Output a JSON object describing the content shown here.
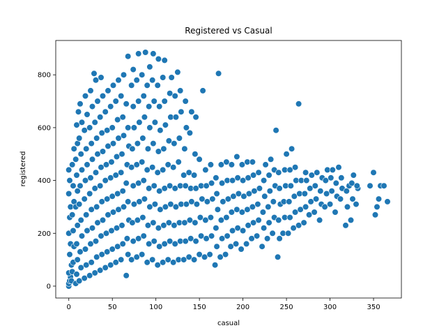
{
  "chart_data": {
    "type": "scatter",
    "title": "Registered vs Casual",
    "xlabel": "casual",
    "ylabel": "registered",
    "xlim": [
      -15,
      382
    ],
    "ylim": [
      -45,
      930
    ],
    "xticks": [
      0,
      50,
      100,
      150,
      200,
      250,
      300,
      350
    ],
    "yticks": [
      0,
      200,
      400,
      600,
      800
    ],
    "grid": false,
    "legend": "none",
    "marker_color": "#1f77b4",
    "marker_edge": "#ffffff",
    "points": [
      [
        0,
        0
      ],
      [
        0,
        10
      ],
      [
        1,
        20
      ],
      [
        2,
        35
      ],
      [
        0,
        50
      ],
      [
        3,
        80
      ],
      [
        1,
        120
      ],
      [
        2,
        160
      ],
      [
        0,
        200
      ],
      [
        1,
        260
      ],
      [
        2,
        300
      ],
      [
        0,
        350
      ],
      [
        1,
        400
      ],
      [
        0,
        440
      ],
      [
        3,
        20
      ],
      [
        4,
        55
      ],
      [
        5,
        90
      ],
      [
        6,
        150
      ],
      [
        5,
        210
      ],
      [
        4,
        270
      ],
      [
        6,
        320
      ],
      [
        5,
        380
      ],
      [
        4,
        460
      ],
      [
        6,
        520
      ],
      [
        8,
        10
      ],
      [
        9,
        45
      ],
      [
        10,
        100
      ],
      [
        9,
        160
      ],
      [
        10,
        230
      ],
      [
        8,
        300
      ],
      [
        10,
        360
      ],
      [
        9,
        420
      ],
      [
        8,
        480
      ],
      [
        10,
        540
      ],
      [
        9,
        610
      ],
      [
        11,
        660
      ],
      [
        12,
        20
      ],
      [
        14,
        70
      ],
      [
        13,
        130
      ],
      [
        15,
        190
      ],
      [
        14,
        250
      ],
      [
        12,
        310
      ],
      [
        13,
        380
      ],
      [
        15,
        440
      ],
      [
        14,
        500
      ],
      [
        12,
        560
      ],
      [
        15,
        620
      ],
      [
        13,
        690
      ],
      [
        18,
        30
      ],
      [
        20,
        80
      ],
      [
        19,
        140
      ],
      [
        21,
        210
      ],
      [
        20,
        270
      ],
      [
        18,
        330
      ],
      [
        19,
        400
      ],
      [
        21,
        460
      ],
      [
        20,
        520
      ],
      [
        18,
        590
      ],
      [
        21,
        650
      ],
      [
        19,
        720
      ],
      [
        24,
        40
      ],
      [
        26,
        90
      ],
      [
        25,
        160
      ],
      [
        27,
        220
      ],
      [
        26,
        290
      ],
      [
        24,
        350
      ],
      [
        25,
        410
      ],
      [
        27,
        480
      ],
      [
        26,
        540
      ],
      [
        24,
        600
      ],
      [
        27,
        680
      ],
      [
        25,
        740
      ],
      [
        30,
        50
      ],
      [
        32,
        110
      ],
      [
        31,
        170
      ],
      [
        33,
        240
      ],
      [
        32,
        300
      ],
      [
        30,
        370
      ],
      [
        31,
        430
      ],
      [
        33,
        500
      ],
      [
        32,
        560
      ],
      [
        30,
        620
      ],
      [
        33,
        700
      ],
      [
        31,
        780
      ],
      [
        29,
        805
      ],
      [
        36,
        60
      ],
      [
        38,
        120
      ],
      [
        37,
        190
      ],
      [
        39,
        250
      ],
      [
        38,
        320
      ],
      [
        36,
        380
      ],
      [
        37,
        450
      ],
      [
        39,
        510
      ],
      [
        38,
        580
      ],
      [
        36,
        640
      ],
      [
        39,
        720
      ],
      [
        37,
        790
      ],
      [
        42,
        70
      ],
      [
        44,
        130
      ],
      [
        43,
        200
      ],
      [
        45,
        270
      ],
      [
        44,
        330
      ],
      [
        42,
        400
      ],
      [
        43,
        460
      ],
      [
        45,
        530
      ],
      [
        44,
        590
      ],
      [
        42,
        660
      ],
      [
        45,
        740
      ],
      [
        48,
        80
      ],
      [
        50,
        140
      ],
      [
        49,
        210
      ],
      [
        51,
        280
      ],
      [
        50,
        340
      ],
      [
        48,
        410
      ],
      [
        49,
        470
      ],
      [
        51,
        540
      ],
      [
        50,
        600
      ],
      [
        48,
        680
      ],
      [
        51,
        760
      ],
      [
        54,
        90
      ],
      [
        56,
        150
      ],
      [
        55,
        220
      ],
      [
        57,
        290
      ],
      [
        56,
        350
      ],
      [
        54,
        420
      ],
      [
        55,
        490
      ],
      [
        57,
        560
      ],
      [
        56,
        630
      ],
      [
        54,
        700
      ],
      [
        57,
        780
      ],
      [
        60,
        100
      ],
      [
        62,
        160
      ],
      [
        61,
        230
      ],
      [
        63,
        300
      ],
      [
        62,
        360
      ],
      [
        60,
        430
      ],
      [
        61,
        500
      ],
      [
        63,
        570
      ],
      [
        62,
        640
      ],
      [
        60,
        720
      ],
      [
        63,
        800
      ],
      [
        66,
        40
      ],
      [
        68,
        120
      ],
      [
        67,
        180
      ],
      [
        69,
        250
      ],
      [
        68,
        320
      ],
      [
        66,
        390
      ],
      [
        67,
        460
      ],
      [
        69,
        530
      ],
      [
        68,
        600
      ],
      [
        66,
        690
      ],
      [
        68,
        870
      ],
      [
        72,
        100
      ],
      [
        74,
        170
      ],
      [
        73,
        240
      ],
      [
        75,
        310
      ],
      [
        74,
        380
      ],
      [
        72,
        450
      ],
      [
        73,
        520
      ],
      [
        75,
        600
      ],
      [
        74,
        680
      ],
      [
        72,
        760
      ],
      [
        74,
        820
      ],
      [
        78,
        110
      ],
      [
        80,
        180
      ],
      [
        79,
        250
      ],
      [
        81,
        320
      ],
      [
        80,
        390
      ],
      [
        78,
        460
      ],
      [
        79,
        540
      ],
      [
        81,
        620
      ],
      [
        80,
        700
      ],
      [
        78,
        780
      ],
      [
        80,
        880
      ],
      [
        84,
        120
      ],
      [
        86,
        190
      ],
      [
        85,
        260
      ],
      [
        87,
        330
      ],
      [
        86,
        400
      ],
      [
        84,
        470
      ],
      [
        85,
        560
      ],
      [
        87,
        640
      ],
      [
        86,
        720
      ],
      [
        84,
        800
      ],
      [
        88,
        885
      ],
      [
        90,
        90
      ],
      [
        92,
        160
      ],
      [
        91,
        230
      ],
      [
        93,
        300
      ],
      [
        92,
        370
      ],
      [
        90,
        440
      ],
      [
        91,
        520
      ],
      [
        93,
        600
      ],
      [
        92,
        680
      ],
      [
        90,
        760
      ],
      [
        93,
        830
      ],
      [
        96,
        100
      ],
      [
        98,
        170
      ],
      [
        97,
        240
      ],
      [
        99,
        310
      ],
      [
        98,
        380
      ],
      [
        96,
        450
      ],
      [
        97,
        540
      ],
      [
        99,
        620
      ],
      [
        98,
        700
      ],
      [
        96,
        780
      ],
      [
        97,
        880
      ],
      [
        102,
        80
      ],
      [
        104,
        150
      ],
      [
        103,
        220
      ],
      [
        105,
        290
      ],
      [
        104,
        360
      ],
      [
        102,
        430
      ],
      [
        103,
        510
      ],
      [
        105,
        590
      ],
      [
        104,
        680
      ],
      [
        102,
        760
      ],
      [
        103,
        860
      ],
      [
        108,
        90
      ],
      [
        110,
        160
      ],
      [
        109,
        230
      ],
      [
        111,
        300
      ],
      [
        110,
        370
      ],
      [
        108,
        440
      ],
      [
        109,
        520
      ],
      [
        111,
        610
      ],
      [
        110,
        700
      ],
      [
        108,
        790
      ],
      [
        110,
        855
      ],
      [
        114,
        100
      ],
      [
        116,
        170
      ],
      [
        115,
        240
      ],
      [
        117,
        310
      ],
      [
        116,
        380
      ],
      [
        114,
        460
      ],
      [
        115,
        550
      ],
      [
        117,
        640
      ],
      [
        116,
        730
      ],
      [
        118,
        790
      ],
      [
        120,
        90
      ],
      [
        122,
        160
      ],
      [
        121,
        230
      ],
      [
        123,
        300
      ],
      [
        122,
        370
      ],
      [
        120,
        450
      ],
      [
        121,
        540
      ],
      [
        123,
        640
      ],
      [
        122,
        720
      ],
      [
        125,
        810
      ],
      [
        126,
        100
      ],
      [
        128,
        170
      ],
      [
        127,
        240
      ],
      [
        129,
        310
      ],
      [
        128,
        380
      ],
      [
        126,
        470
      ],
      [
        127,
        560
      ],
      [
        129,
        660
      ],
      [
        128,
        740
      ],
      [
        132,
        100
      ],
      [
        134,
        170
      ],
      [
        133,
        240
      ],
      [
        135,
        310
      ],
      [
        134,
        380
      ],
      [
        132,
        420
      ],
      [
        133,
        520
      ],
      [
        135,
        600
      ],
      [
        134,
        700
      ],
      [
        138,
        110
      ],
      [
        140,
        180
      ],
      [
        139,
        250
      ],
      [
        141,
        320
      ],
      [
        140,
        370
      ],
      [
        138,
        430
      ],
      [
        139,
        580
      ],
      [
        141,
        660
      ],
      [
        144,
        100
      ],
      [
        146,
        170
      ],
      [
        145,
        240
      ],
      [
        147,
        310
      ],
      [
        146,
        370
      ],
      [
        144,
        420
      ],
      [
        145,
        500
      ],
      [
        146,
        640
      ],
      [
        150,
        120
      ],
      [
        152,
        190
      ],
      [
        151,
        260
      ],
      [
        153,
        330
      ],
      [
        152,
        380
      ],
      [
        150,
        480
      ],
      [
        154,
        740
      ],
      [
        156,
        110
      ],
      [
        158,
        180
      ],
      [
        157,
        250
      ],
      [
        159,
        320
      ],
      [
        158,
        380
      ],
      [
        157,
        440
      ],
      [
        162,
        120
      ],
      [
        164,
        190
      ],
      [
        163,
        260
      ],
      [
        165,
        330
      ],
      [
        164,
        390
      ],
      [
        163,
        460
      ],
      [
        168,
        80
      ],
      [
        170,
        150
      ],
      [
        169,
        220
      ],
      [
        171,
        290
      ],
      [
        170,
        350
      ],
      [
        169,
        410
      ],
      [
        172,
        805
      ],
      [
        174,
        110
      ],
      [
        176,
        180
      ],
      [
        175,
        250
      ],
      [
        177,
        320
      ],
      [
        176,
        390
      ],
      [
        175,
        460
      ],
      [
        180,
        120
      ],
      [
        182,
        190
      ],
      [
        181,
        260
      ],
      [
        183,
        330
      ],
      [
        182,
        400
      ],
      [
        181,
        470
      ],
      [
        186,
        150
      ],
      [
        188,
        210
      ],
      [
        187,
        280
      ],
      [
        189,
        340
      ],
      [
        188,
        400
      ],
      [
        187,
        460
      ],
      [
        192,
        160
      ],
      [
        194,
        220
      ],
      [
        193,
        290
      ],
      [
        195,
        350
      ],
      [
        194,
        410
      ],
      [
        193,
        490
      ],
      [
        198,
        140
      ],
      [
        200,
        210
      ],
      [
        199,
        280
      ],
      [
        201,
        340
      ],
      [
        200,
        400
      ],
      [
        199,
        460
      ],
      [
        204,
        160
      ],
      [
        206,
        230
      ],
      [
        205,
        290
      ],
      [
        207,
        350
      ],
      [
        206,
        410
      ],
      [
        205,
        470
      ],
      [
        210,
        180
      ],
      [
        212,
        240
      ],
      [
        211,
        300
      ],
      [
        213,
        360
      ],
      [
        212,
        420
      ],
      [
        211,
        470
      ],
      [
        216,
        190
      ],
      [
        218,
        250
      ],
      [
        217,
        310
      ],
      [
        219,
        370
      ],
      [
        218,
        430
      ],
      [
        222,
        150
      ],
      [
        224,
        220
      ],
      [
        223,
        280
      ],
      [
        225,
        340
      ],
      [
        224,
        400
      ],
      [
        226,
        460
      ],
      [
        228,
        180
      ],
      [
        230,
        240
      ],
      [
        229,
        300
      ],
      [
        231,
        360
      ],
      [
        230,
        420
      ],
      [
        232,
        480
      ],
      [
        234,
        200
      ],
      [
        236,
        260
      ],
      [
        235,
        320
      ],
      [
        237,
        380
      ],
      [
        236,
        440
      ],
      [
        238,
        590
      ],
      [
        240,
        110
      ],
      [
        242,
        180
      ],
      [
        241,
        250
      ],
      [
        243,
        310
      ],
      [
        242,
        370
      ],
      [
        241,
        430
      ],
      [
        246,
        200
      ],
      [
        248,
        260
      ],
      [
        247,
        320
      ],
      [
        249,
        380
      ],
      [
        248,
        440
      ],
      [
        250,
        500
      ],
      [
        252,
        200
      ],
      [
        254,
        260
      ],
      [
        253,
        320
      ],
      [
        255,
        380
      ],
      [
        254,
        440
      ],
      [
        256,
        520
      ],
      [
        258,
        220
      ],
      [
        260,
        280
      ],
      [
        259,
        340
      ],
      [
        261,
        400
      ],
      [
        260,
        450
      ],
      [
        264,
        230
      ],
      [
        266,
        290
      ],
      [
        265,
        350
      ],
      [
        267,
        400
      ],
      [
        264,
        690
      ],
      [
        270,
        240
      ],
      [
        272,
        300
      ],
      [
        271,
        350
      ],
      [
        273,
        400
      ],
      [
        272,
        430
      ],
      [
        276,
        270
      ],
      [
        278,
        320
      ],
      [
        277,
        370
      ],
      [
        279,
        420
      ],
      [
        282,
        280
      ],
      [
        284,
        330
      ],
      [
        283,
        380
      ],
      [
        285,
        430
      ],
      [
        288,
        250
      ],
      [
        290,
        310
      ],
      [
        289,
        360
      ],
      [
        291,
        410
      ],
      [
        294,
        300
      ],
      [
        296,
        350
      ],
      [
        295,
        400
      ],
      [
        297,
        440
      ],
      [
        300,
        310
      ],
      [
        302,
        360
      ],
      [
        301,
        410
      ],
      [
        303,
        440
      ],
      [
        306,
        280
      ],
      [
        308,
        340
      ],
      [
        307,
        390
      ],
      [
        310,
        450
      ],
      [
        312,
        330
      ],
      [
        314,
        370
      ],
      [
        313,
        410
      ],
      [
        318,
        230
      ],
      [
        320,
        300
      ],
      [
        319,
        360
      ],
      [
        322,
        380
      ],
      [
        324,
        250
      ],
      [
        326,
        330
      ],
      [
        325,
        390
      ],
      [
        327,
        420
      ],
      [
        330,
        310
      ],
      [
        332,
        370
      ],
      [
        331,
        380
      ],
      [
        346,
        380
      ],
      [
        350,
        430
      ],
      [
        352,
        270
      ],
      [
        354,
        300
      ],
      [
        356,
        330
      ],
      [
        358,
        380
      ],
      [
        362,
        380
      ],
      [
        366,
        320
      ]
    ]
  }
}
